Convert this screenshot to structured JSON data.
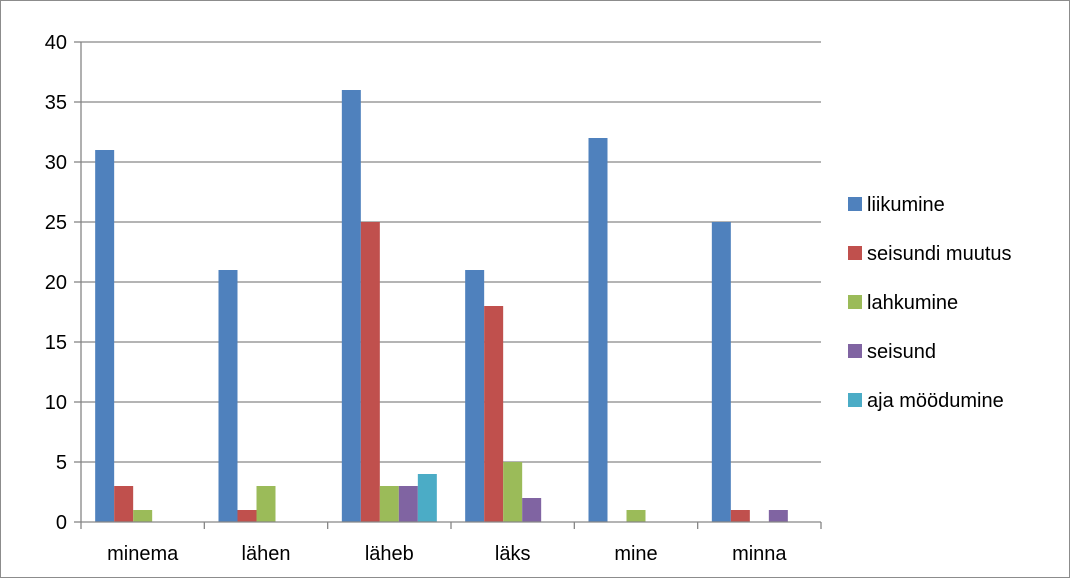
{
  "chart_data": {
    "type": "bar",
    "title": "",
    "xlabel": "",
    "ylabel": "",
    "categories": [
      "minema",
      "lähen",
      "läheb",
      "läks",
      "mine",
      "minna"
    ],
    "ylim": [
      0,
      40
    ],
    "yticks": [
      0,
      5,
      10,
      15,
      20,
      25,
      30,
      35,
      40
    ],
    "grid": true,
    "legend_position": "right",
    "series": [
      {
        "name": "liikumine",
        "color": "#4f81bd",
        "values": [
          31,
          21,
          36,
          21,
          32,
          25
        ]
      },
      {
        "name": "seisundi muutus",
        "color": "#c0504d",
        "values": [
          3,
          1,
          25,
          18,
          0,
          1
        ]
      },
      {
        "name": "lahkumine",
        "color": "#9bbb59",
        "values": [
          1,
          3,
          3,
          5,
          1,
          0
        ]
      },
      {
        "name": "seisund",
        "color": "#8064a2",
        "values": [
          0,
          0,
          3,
          2,
          0,
          1
        ]
      },
      {
        "name": "aja möödumine",
        "color": "#4bacc6",
        "values": [
          0,
          0,
          4,
          0,
          0,
          0
        ]
      }
    ]
  }
}
